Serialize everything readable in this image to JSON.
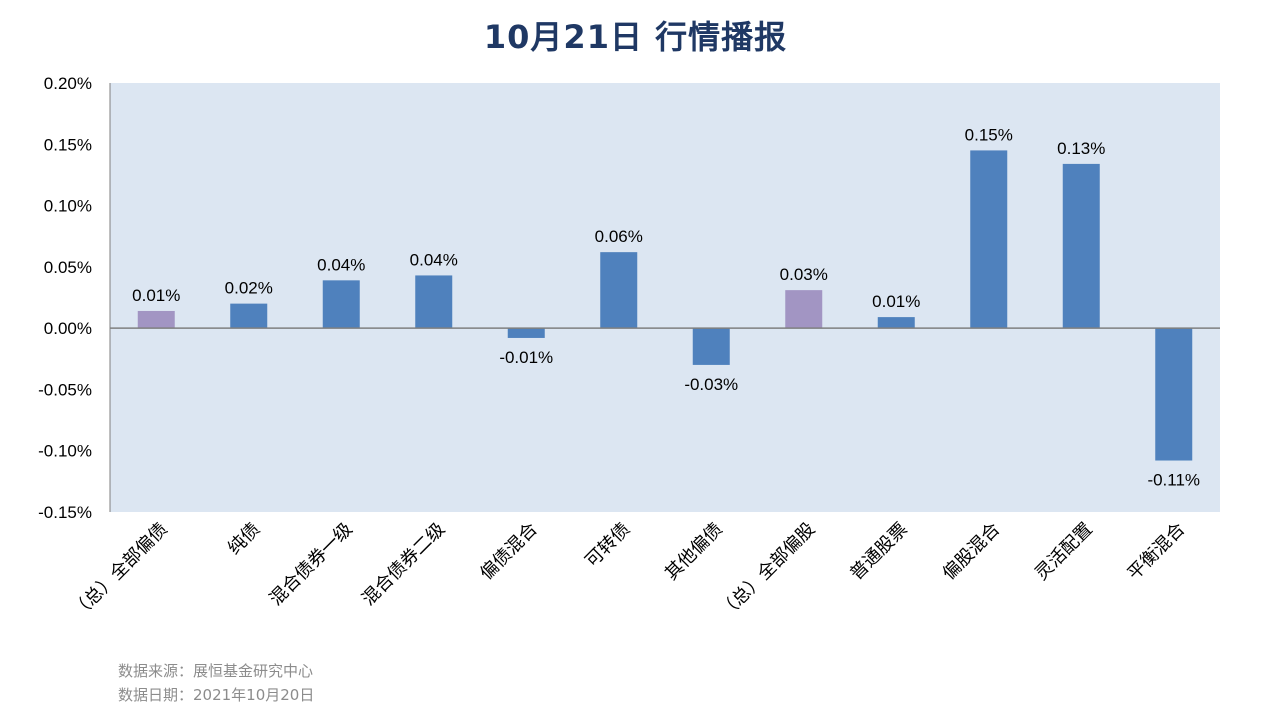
{
  "header": {
    "title": "10月21日  行情播报"
  },
  "footer": {
    "source": "数据来源：展恒基金研究中心",
    "date": "数据日期：2021年10月20日"
  },
  "colors": {
    "title": "#1f3864",
    "plot_bg": "#dce6f2",
    "bar": "#4f81bd",
    "bar_highlight": "#a295c3",
    "axis": "#7f7f7f"
  },
  "chart_data": {
    "type": "bar",
    "categories": [
      "（总）全部偏债",
      "纯债",
      "混合债券一级",
      "混合债券二级",
      "偏债混合",
      "可转债",
      "其他偏债",
      "（总）全部偏股",
      "普通股票",
      "偏股混合",
      "灵活配置",
      "平衡混合"
    ],
    "values": [
      0.014,
      0.02,
      0.039,
      0.043,
      -0.008,
      0.062,
      -0.03,
      0.031,
      0.009,
      0.145,
      0.134,
      -0.108
    ],
    "data_labels": [
      "0.01%",
      "0.02%",
      "0.04%",
      "0.04%",
      "-0.01%",
      "0.06%",
      "-0.03%",
      "0.03%",
      "0.01%",
      "0.15%",
      "0.13%",
      "-0.11%"
    ],
    "highlight_categories": [
      "（总）全部偏债",
      "（总）全部偏股"
    ],
    "ylim": [
      -0.15,
      0.2
    ],
    "yticks": [
      0.2,
      0.15,
      0.1,
      0.05,
      0.0,
      -0.05,
      -0.1,
      -0.15
    ],
    "ytick_labels": [
      "0.20%",
      "0.15%",
      "0.10%",
      "0.05%",
      "0.00%",
      "-0.05%",
      "-0.10%",
      "-0.15%"
    ],
    "unit": "%",
    "grid": false,
    "legend": "none",
    "xlabel": "",
    "ylabel": ""
  }
}
